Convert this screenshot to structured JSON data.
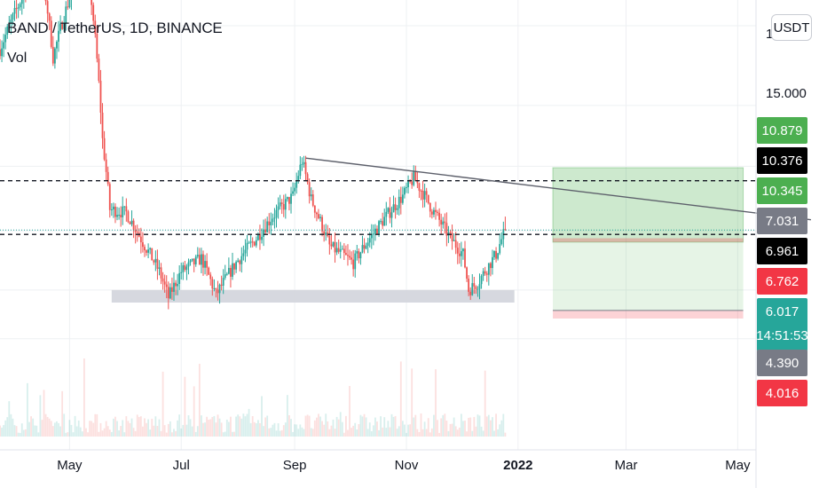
{
  "header": {
    "symbol_line": "BAND / TetherUS, 1D, BINANCE",
    "volume_label": "Vol"
  },
  "price_scale": {
    "unit_button": "USDT",
    "partial_top_label": "1",
    "tick_label": "15.000",
    "badges": [
      {
        "value": "10.879",
        "color": "#4caf50"
      },
      {
        "value": "10.376",
        "color": "#000000"
      },
      {
        "value": "10.345",
        "color": "#4caf50"
      },
      {
        "value": "7.031",
        "color": "#787b86"
      },
      {
        "value": "6.961",
        "color": "#000000"
      },
      {
        "value": "6.762",
        "color": "#f23645"
      },
      {
        "value": "6.017",
        "color": "#26a69a",
        "countdown": "14:51:53"
      },
      {
        "value": "4.390",
        "color": "#787b86"
      },
      {
        "value": "4.016",
        "color": "#f23645"
      }
    ]
  },
  "colors": {
    "up": "#26a69a",
    "down": "#ef5350",
    "grid": "#eef0f3",
    "target_zone": "#4caf50",
    "stop_zone": "#f23645"
  },
  "chart_data": {
    "type": "candlestick",
    "symbol": "BAND / TetherUS",
    "interval": "1D",
    "exchange": "BINANCE",
    "x_tick_labels": [
      "May",
      "Jul",
      "Sep",
      "Nov",
      "2022",
      "Mar",
      "May"
    ],
    "x_ticks": [
      {
        "label": "May",
        "date": "2021-05-01"
      },
      {
        "label": "Jul",
        "date": "2021-07-01"
      },
      {
        "label": "Sep",
        "date": "2021-09-01"
      },
      {
        "label": "Nov",
        "date": "2021-11-01"
      },
      {
        "label": "2022",
        "date": "2022-01-01"
      },
      {
        "label": "Mar",
        "date": "2022-03-01"
      },
      {
        "label": "May",
        "date": "2022-05-01"
      }
    ],
    "y_scale": "log",
    "y_range_usdt": [
      3.0,
      22.0
    ],
    "price_path": [
      {
        "date": "2021-03-24",
        "close": 13.5
      },
      {
        "date": "2021-04-05",
        "close": 17.0
      },
      {
        "date": "2021-04-15",
        "close": 20.0
      },
      {
        "date": "2021-04-22",
        "close": 13.0
      },
      {
        "date": "2021-05-01",
        "close": 17.0
      },
      {
        "date": "2021-05-08",
        "close": 22.0
      },
      {
        "date": "2021-05-12",
        "close": 18.0
      },
      {
        "date": "2021-05-19",
        "close": 9.0
      },
      {
        "date": "2021-05-23",
        "close": 6.6
      },
      {
        "date": "2021-06-01",
        "close": 6.5
      },
      {
        "date": "2021-06-10",
        "close": 5.7
      },
      {
        "date": "2021-06-19",
        "close": 5.0
      },
      {
        "date": "2021-06-24",
        "close": 4.45
      },
      {
        "date": "2021-07-01",
        "close": 5.0
      },
      {
        "date": "2021-07-12",
        "close": 5.3
      },
      {
        "date": "2021-07-20",
        "close": 4.5
      },
      {
        "date": "2021-07-31",
        "close": 5.2
      },
      {
        "date": "2021-08-11",
        "close": 5.8
      },
      {
        "date": "2021-08-20",
        "close": 6.4
      },
      {
        "date": "2021-08-31",
        "close": 7.0
      },
      {
        "date": "2021-09-05",
        "close": 8.2
      },
      {
        "date": "2021-09-10",
        "close": 6.9
      },
      {
        "date": "2021-09-20",
        "close": 5.6
      },
      {
        "date": "2021-10-03",
        "close": 5.2
      },
      {
        "date": "2021-10-15",
        "close": 6.0
      },
      {
        "date": "2021-10-30",
        "close": 7.0
      },
      {
        "date": "2021-11-05",
        "close": 7.6
      },
      {
        "date": "2021-11-15",
        "close": 6.6
      },
      {
        "date": "2021-11-25",
        "close": 5.8
      },
      {
        "date": "2021-12-02",
        "close": 5.4
      },
      {
        "date": "2021-12-05",
        "close": 4.6
      },
      {
        "date": "2021-12-10",
        "close": 4.75
      },
      {
        "date": "2021-12-20",
        "close": 5.4
      },
      {
        "date": "2021-12-25",
        "close": 6.017
      }
    ],
    "horizontal_levels": [
      7.5,
      5.9
    ],
    "support_zone": {
      "from": "2021-05-24",
      "to": "2021-12-30",
      "low": 4.35,
      "high": 4.6
    },
    "trendline": {
      "from": {
        "date": "2021-09-07",
        "price": 8.3
      },
      "to": {
        "date": "2022-06-10",
        "price": 6.3
      }
    },
    "position_tool": {
      "from": "2022-01-20",
      "to": "2022-05-04",
      "target_top": 7.95,
      "entry": 5.8,
      "entry_band_low": 5.7,
      "stop": 4.2,
      "stop_low": 4.05
    },
    "current_price": 6.017
  }
}
